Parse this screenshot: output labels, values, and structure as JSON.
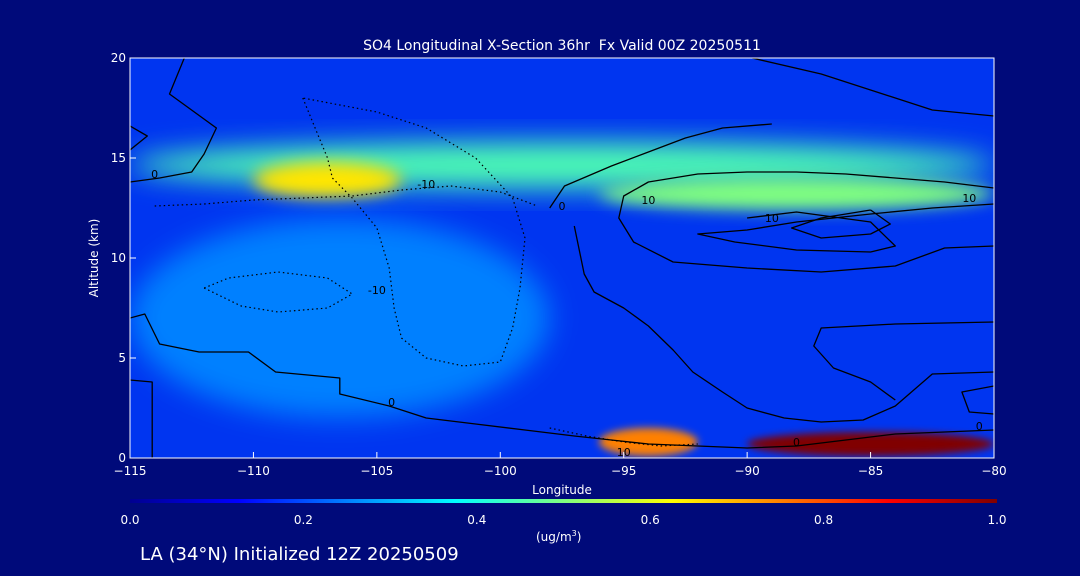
{
  "chart_data": {
    "type": "heatmap",
    "title": "SO4 Longitudinal X-Section 36hr  Fx Valid 00Z 20250511",
    "xlabel": "Longitude",
    "ylabel": "Altitude (km)",
    "xlim": [
      -115,
      -80
    ],
    "ylim": [
      0,
      20
    ],
    "x_ticks": [
      -115,
      -110,
      -105,
      -100,
      -95,
      -90,
      -85,
      -80
    ],
    "y_ticks": [
      0,
      5,
      10,
      15,
      20
    ],
    "colorbar": {
      "ticks": [
        0.0,
        0.2,
        0.4,
        0.6,
        0.8,
        1.0
      ],
      "tick_labels": [
        "0.0",
        "0.2",
        "0.4",
        "0.6",
        "0.8",
        "1.0"
      ],
      "label": "(ug/m",
      "label_sup": "3",
      "label_end": ")",
      "colors": [
        "#00008f",
        "#0000ff",
        "#0080ff",
        "#00ffff",
        "#80ff80",
        "#ffff00",
        "#ff8000",
        "#ff0000",
        "#800000"
      ]
    },
    "concentration_features": [
      {
        "lon": [
          -115,
          -80
        ],
        "alt": [
          13.5,
          15.8
        ],
        "value": 0.45
      },
      {
        "lon": [
          -110,
          -104
        ],
        "alt": [
          13.0,
          14.8
        ],
        "value": 0.65
      },
      {
        "lon": [
          -96,
          -80
        ],
        "alt": [
          12.4,
          14.0
        ],
        "value": 0.5
      },
      {
        "lon": [
          -96,
          -92
        ],
        "alt": [
          0.1,
          1.5
        ],
        "value": 0.75
      },
      {
        "lon": [
          -90,
          -80
        ],
        "alt": [
          0.1,
          1.3
        ],
        "value": 1.0
      },
      {
        "lon": [
          -115,
          -98
        ],
        "alt": [
          2,
          12
        ],
        "value": 0.25
      }
    ],
    "contour_labels": [
      {
        "text": "0",
        "lon": -114.0,
        "alt": 14.0
      },
      {
        "text": "-10",
        "lon": -103.0,
        "alt": 13.5
      },
      {
        "text": "-10",
        "lon": -105.0,
        "alt": 8.2
      },
      {
        "text": "0",
        "lon": -104.4,
        "alt": 2.6
      },
      {
        "text": "0",
        "lon": -97.5,
        "alt": 12.4
      },
      {
        "text": "10",
        "lon": -94.0,
        "alt": 12.7
      },
      {
        "text": "10",
        "lon": -89.0,
        "alt": 11.8
      },
      {
        "text": "10",
        "lon": -81.0,
        "alt": 12.8
      },
      {
        "text": "10",
        "lon": -95.0,
        "alt": 0.1
      },
      {
        "text": "0",
        "lon": -88.0,
        "alt": 0.6
      },
      {
        "text": "0",
        "lon": -80.6,
        "alt": 1.4
      }
    ],
    "contours": [
      {
        "style": "solid",
        "points": [
          [
            -112.8,
            20
          ],
          [
            -113.4,
            18.2
          ],
          [
            -111.5,
            16.5
          ],
          [
            -112.0,
            15.2
          ],
          [
            -112.5,
            14.3
          ],
          [
            -113.8,
            14.0
          ],
          [
            -115,
            13.8
          ]
        ]
      },
      {
        "style": "solid",
        "points": [
          [
            -115,
            16.6
          ],
          [
            -114.3,
            16.1
          ],
          [
            -115,
            15.4
          ]
        ]
      },
      {
        "style": "solid",
        "points": [
          [
            -115,
            7.0
          ],
          [
            -114.4,
            7.2
          ],
          [
            -113.8,
            5.7
          ],
          [
            -112.2,
            5.3
          ],
          [
            -110.2,
            5.3
          ],
          [
            -109.1,
            4.3
          ],
          [
            -106.5,
            4.0
          ],
          [
            -106.5,
            3.2
          ],
          [
            -104.5,
            2.6
          ],
          [
            -103.0,
            2.0
          ],
          [
            -101.0,
            1.7
          ],
          [
            -99.0,
            1.4
          ],
          [
            -97.0,
            1.1
          ],
          [
            -95.5,
            0.9
          ],
          [
            -94.0,
            0.7
          ],
          [
            -92.0,
            0.6
          ],
          [
            -90.0,
            0.5
          ],
          [
            -88.0,
            0.6
          ],
          [
            -86.0,
            0.9
          ],
          [
            -84.0,
            1.2
          ],
          [
            -82.0,
            1.3
          ],
          [
            -80,
            1.4
          ]
        ]
      },
      {
        "style": "solid",
        "points": [
          [
            -115,
            3.9
          ],
          [
            -114.1,
            3.8
          ],
          [
            -114.1,
            0
          ]
        ]
      },
      {
        "style": "solid",
        "points": [
          [
            -80,
            3.6
          ],
          [
            -81.3,
            3.3
          ],
          [
            -81.0,
            2.3
          ],
          [
            -80,
            2.2
          ]
        ]
      },
      {
        "style": "solid",
        "points": [
          [
            -98.0,
            12.5
          ],
          [
            -97.4,
            13.6
          ],
          [
            -95.5,
            14.6
          ],
          [
            -94.0,
            15.3
          ],
          [
            -92.5,
            16.0
          ],
          [
            -91.0,
            16.5
          ],
          [
            -89.0,
            16.7
          ]
        ]
      },
      {
        "style": "solid",
        "points": [
          [
            -97.0,
            11.6
          ],
          [
            -96.6,
            9.2
          ],
          [
            -96.2,
            8.3
          ],
          [
            -95.0,
            7.5
          ],
          [
            -94.0,
            6.6
          ],
          [
            -93.0,
            5.4
          ],
          [
            -92.2,
            4.3
          ],
          [
            -91.0,
            3.3
          ],
          [
            -90.0,
            2.5
          ],
          [
            -88.5,
            2.0
          ],
          [
            -87.0,
            1.8
          ],
          [
            -85.3,
            1.9
          ],
          [
            -84.0,
            2.6
          ],
          [
            -82.5,
            4.2
          ],
          [
            -80,
            4.3
          ]
        ]
      },
      {
        "style": "solid",
        "points": [
          [
            -80,
            13.5
          ],
          [
            -82.0,
            13.8
          ],
          [
            -84.0,
            14.0
          ],
          [
            -86.0,
            14.2
          ],
          [
            -88.0,
            14.3
          ],
          [
            -90.0,
            14.3
          ],
          [
            -92.0,
            14.2
          ],
          [
            -94.0,
            13.8
          ],
          [
            -95.0,
            13.1
          ],
          [
            -95.2,
            12.0
          ],
          [
            -94.6,
            10.8
          ],
          [
            -93.0,
            9.8
          ],
          [
            -90.0,
            9.5
          ],
          [
            -87.0,
            9.3
          ],
          [
            -84.0,
            9.6
          ],
          [
            -82.0,
            10.5
          ],
          [
            -80,
            10.6
          ]
        ]
      },
      {
        "style": "solid",
        "points": [
          [
            -80,
            12.7
          ],
          [
            -82.5,
            12.5
          ],
          [
            -85.0,
            12.2
          ],
          [
            -88.0,
            11.8
          ],
          [
            -90.0,
            11.4
          ],
          [
            -92.0,
            11.2
          ],
          [
            -90.5,
            10.8
          ],
          [
            -88.0,
            10.4
          ],
          [
            -85.0,
            10.3
          ],
          [
            -84.0,
            10.6
          ],
          [
            -85.0,
            11.8
          ],
          [
            -88.0,
            12.3
          ],
          [
            -90.0,
            12.0
          ]
        ]
      },
      {
        "style": "solid",
        "points": [
          [
            -85,
            12.4
          ],
          [
            -87.0,
            12.0
          ],
          [
            -88.2,
            11.5
          ],
          [
            -87.0,
            11.0
          ],
          [
            -85.0,
            11.2
          ],
          [
            -84.2,
            11.7
          ],
          [
            -85,
            12.4
          ]
        ]
      },
      {
        "style": "solid",
        "points": [
          [
            -89.8,
            20
          ],
          [
            -87.0,
            19.2
          ],
          [
            -84.5,
            18.2
          ],
          [
            -82.5,
            17.4
          ],
          [
            -80,
            17.1
          ]
        ]
      },
      {
        "style": "solid",
        "points": [
          [
            -80,
            6.8
          ],
          [
            -84.0,
            6.7
          ],
          [
            -87.0,
            6.5
          ],
          [
            -87.3,
            5.6
          ],
          [
            -86.5,
            4.5
          ],
          [
            -85.0,
            3.8
          ],
          [
            -84.0,
            2.9
          ]
        ]
      },
      {
        "style": "dotted",
        "points": [
          [
            -114.0,
            12.6
          ],
          [
            -112.0,
            12.7
          ],
          [
            -110.0,
            12.9
          ],
          [
            -108.0,
            13.0
          ],
          [
            -106.0,
            13.1
          ],
          [
            -104.0,
            13.4
          ],
          [
            -102.0,
            13.6
          ],
          [
            -100.0,
            13.3
          ],
          [
            -98.5,
            12.6
          ]
        ]
      },
      {
        "style": "dotted",
        "points": [
          [
            -108.0,
            18.0
          ],
          [
            -107.5,
            16.5
          ],
          [
            -107.0,
            15.0
          ],
          [
            -106.8,
            14.0
          ],
          [
            -106.0,
            13.0
          ],
          [
            -105.0,
            11.5
          ],
          [
            -104.5,
            9.5
          ],
          [
            -104.3,
            7.5
          ],
          [
            -104.0,
            6.0
          ],
          [
            -103.0,
            5.0
          ],
          [
            -101.5,
            4.6
          ],
          [
            -100.0,
            4.8
          ],
          [
            -99.5,
            6.5
          ],
          [
            -99.2,
            8.5
          ],
          [
            -99.0,
            11.0
          ],
          [
            -99.5,
            13.0
          ],
          [
            -101.0,
            15.0
          ],
          [
            -103.0,
            16.5
          ],
          [
            -105.0,
            17.3
          ],
          [
            -108.0,
            18.0
          ]
        ]
      },
      {
        "style": "dotted",
        "points": [
          [
            -112.0,
            8.5
          ],
          [
            -110.5,
            7.6
          ],
          [
            -109.0,
            7.3
          ],
          [
            -107.0,
            7.5
          ],
          [
            -106.0,
            8.2
          ],
          [
            -107.0,
            9.0
          ],
          [
            -109.0,
            9.3
          ],
          [
            -111.0,
            9.0
          ],
          [
            -112.0,
            8.5
          ]
        ]
      },
      {
        "style": "dotted",
        "points": [
          [
            -98.0,
            1.5
          ],
          [
            -96.5,
            1.1
          ],
          [
            -95.0,
            0.8
          ],
          [
            -93.5,
            0.6
          ],
          [
            -92.0,
            0.7
          ]
        ]
      }
    ]
  },
  "footer": {
    "prefix": "LA (34",
    "degree": "°",
    "suffix": "N) Initialized 12Z 20250509"
  }
}
